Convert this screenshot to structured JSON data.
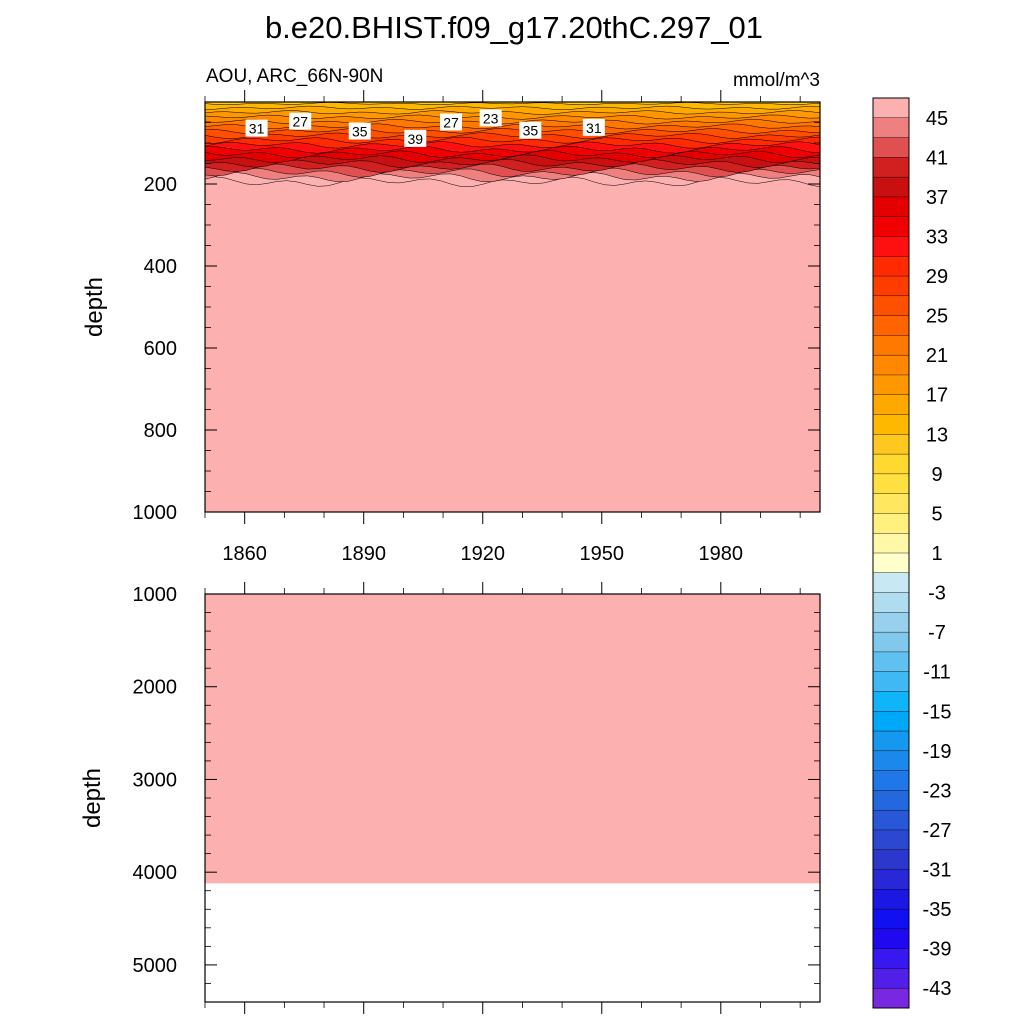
{
  "chart_data": {
    "type": "heatmap",
    "title": "b.e20.BHIST.f09_g17.20thC.297_01",
    "subtitle_left": "AOU, ARC_66N-90N",
    "subtitle_right": "mmol/m^3",
    "x": {
      "range": [
        1850,
        2005
      ],
      "ticks": [
        1860,
        1890,
        1920,
        1950,
        1980
      ],
      "tick_labels": [
        "1860",
        "1890",
        "1920",
        "1950",
        "1980"
      ]
    },
    "panels": [
      {
        "name": "upper",
        "ylabel": "depth",
        "ylim": [
          0,
          1000
        ],
        "yticks": [
          200,
          400,
          600,
          800,
          1000
        ],
        "ytick_labels": [
          "200",
          "400",
          "600",
          "800",
          "1000"
        ],
        "field_below_surface_layer": 47,
        "surface_layer_bottom_depth_approx": 195
      },
      {
        "name": "lower",
        "ylabel": "depth",
        "ylim": [
          1000,
          5400
        ],
        "yticks": [
          1000,
          2000,
          3000,
          4000,
          5000
        ],
        "ytick_labels": [
          "1000",
          "2000",
          "3000",
          "4000",
          "5000"
        ],
        "field_value": 47,
        "ocean_floor_depth_approx": 4120
      }
    ],
    "contour_labels": [
      {
        "label": "31",
        "x": 1863,
        "depth": 65
      },
      {
        "label": "27",
        "x": 1874,
        "depth": 48
      },
      {
        "label": "35",
        "x": 1889,
        "depth": 72
      },
      {
        "label": "39",
        "x": 1903,
        "depth": 90
      },
      {
        "label": "27",
        "x": 1912,
        "depth": 50
      },
      {
        "label": "23",
        "x": 1922,
        "depth": 40
      },
      {
        "label": "35",
        "x": 1932,
        "depth": 70
      },
      {
        "label": "31",
        "x": 1948,
        "depth": 63
      }
    ],
    "colorbar": {
      "levels": [
        45,
        43,
        41,
        39,
        37,
        35,
        33,
        31,
        29,
        27,
        25,
        23,
        21,
        19,
        17,
        15,
        13,
        11,
        9,
        7,
        5,
        3,
        1,
        -1,
        -3,
        -5,
        -7,
        -9,
        -11,
        -13,
        -15,
        -17,
        -19,
        -21,
        -23,
        -25,
        -27,
        -29,
        -31,
        -33,
        -35,
        -37,
        -39,
        -41,
        -43,
        -45
      ],
      "labels": [
        "45",
        "41",
        "37",
        "33",
        "29",
        "25",
        "21",
        "17",
        "13",
        "9",
        "5",
        "1",
        "-3",
        "-7",
        "-11",
        "-15",
        "-19",
        "-23",
        "-27",
        "-31",
        "-35",
        "-39",
        "-43"
      ],
      "colors": [
        "#fdb0b0",
        "#ee8080",
        "#e05050",
        "#d02020",
        "#c81010",
        "#e40000",
        "#f00000",
        "#ff1010",
        "#ff2a00",
        "#ff3c00",
        "#ff5000",
        "#ff6400",
        "#ff7800",
        "#ff8800",
        "#ff9800",
        "#ffa800",
        "#ffb800",
        "#ffc820",
        "#ffd830",
        "#ffe040",
        "#ffe860",
        "#fff080",
        "#fff8a8",
        "#ffffcc",
        "#c8e8f4",
        "#b0dcf0",
        "#98d0ee",
        "#80c8ec",
        "#60c0f0",
        "#40b8f4",
        "#10b4f8",
        "#00a8f8",
        "#1498f0",
        "#1c88ec",
        "#2078e8",
        "#2468e0",
        "#2858d8",
        "#2c48d0",
        "#2c38cc",
        "#2828d8",
        "#1c18e4",
        "#1010f0",
        "#2008f0",
        "#3818f0",
        "#5020e8",
        "#7828e0"
      ]
    }
  }
}
